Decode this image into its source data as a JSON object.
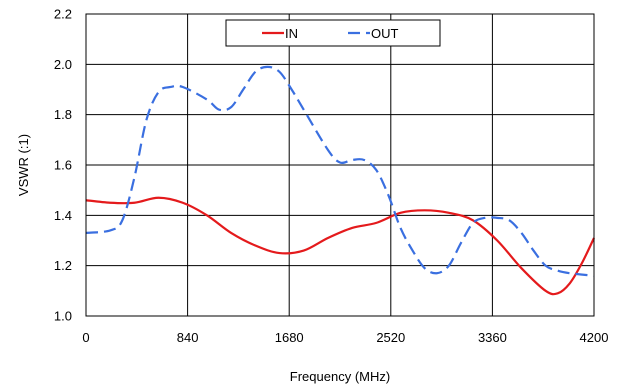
{
  "chart_data": {
    "type": "line",
    "xlabel": "Frequency (MHz)",
    "ylabel": "VSWR (:1)",
    "xlim": [
      0,
      4200
    ],
    "ylim": [
      1.0,
      2.2
    ],
    "x_ticks": [
      0,
      840,
      1680,
      2520,
      3360,
      4200
    ],
    "y_ticks": [
      1.0,
      1.2,
      1.4,
      1.6,
      1.8,
      2.0,
      2.2
    ],
    "x_tick_labels": [
      "0",
      "840",
      "1680",
      "2520",
      "3360",
      "4200"
    ],
    "y_tick_labels": [
      "1.0",
      "1.2",
      "1.4",
      "1.6",
      "1.8",
      "2.0",
      "2.2"
    ],
    "grid": true,
    "legend_position": "top-center",
    "series": [
      {
        "name": "IN",
        "color": "#e41a1c",
        "dash": "solid",
        "x": [
          0,
          200,
          400,
          600,
          800,
          1000,
          1200,
          1400,
          1600,
          1800,
          2000,
          2200,
          2400,
          2600,
          2800,
          3000,
          3200,
          3400,
          3600,
          3800,
          3900,
          4000,
          4100,
          4200
        ],
        "y": [
          1.46,
          1.45,
          1.45,
          1.47,
          1.45,
          1.4,
          1.33,
          1.28,
          1.25,
          1.26,
          1.31,
          1.35,
          1.37,
          1.41,
          1.42,
          1.41,
          1.38,
          1.3,
          1.19,
          1.1,
          1.09,
          1.13,
          1.21,
          1.31
        ]
      },
      {
        "name": "OUT",
        "color": "#3a6fe0",
        "dash": "dashed",
        "x": [
          0,
          200,
          300,
          400,
          500,
          600,
          700,
          800,
          1000,
          1100,
          1200,
          1300,
          1400,
          1500,
          1600,
          1700,
          1800,
          2000,
          2100,
          2200,
          2300,
          2400,
          2500,
          2600,
          2700,
          2800,
          2900,
          3000,
          3100,
          3200,
          3300,
          3400,
          3500,
          3600,
          3700,
          3800,
          3900,
          4000,
          4200
        ],
        "y": [
          1.33,
          1.34,
          1.38,
          1.55,
          1.78,
          1.89,
          1.91,
          1.91,
          1.86,
          1.82,
          1.83,
          1.9,
          1.97,
          1.99,
          1.97,
          1.9,
          1.82,
          1.66,
          1.61,
          1.62,
          1.62,
          1.58,
          1.48,
          1.35,
          1.26,
          1.19,
          1.17,
          1.2,
          1.29,
          1.37,
          1.39,
          1.39,
          1.38,
          1.33,
          1.26,
          1.2,
          1.18,
          1.17,
          1.16
        ]
      }
    ]
  }
}
